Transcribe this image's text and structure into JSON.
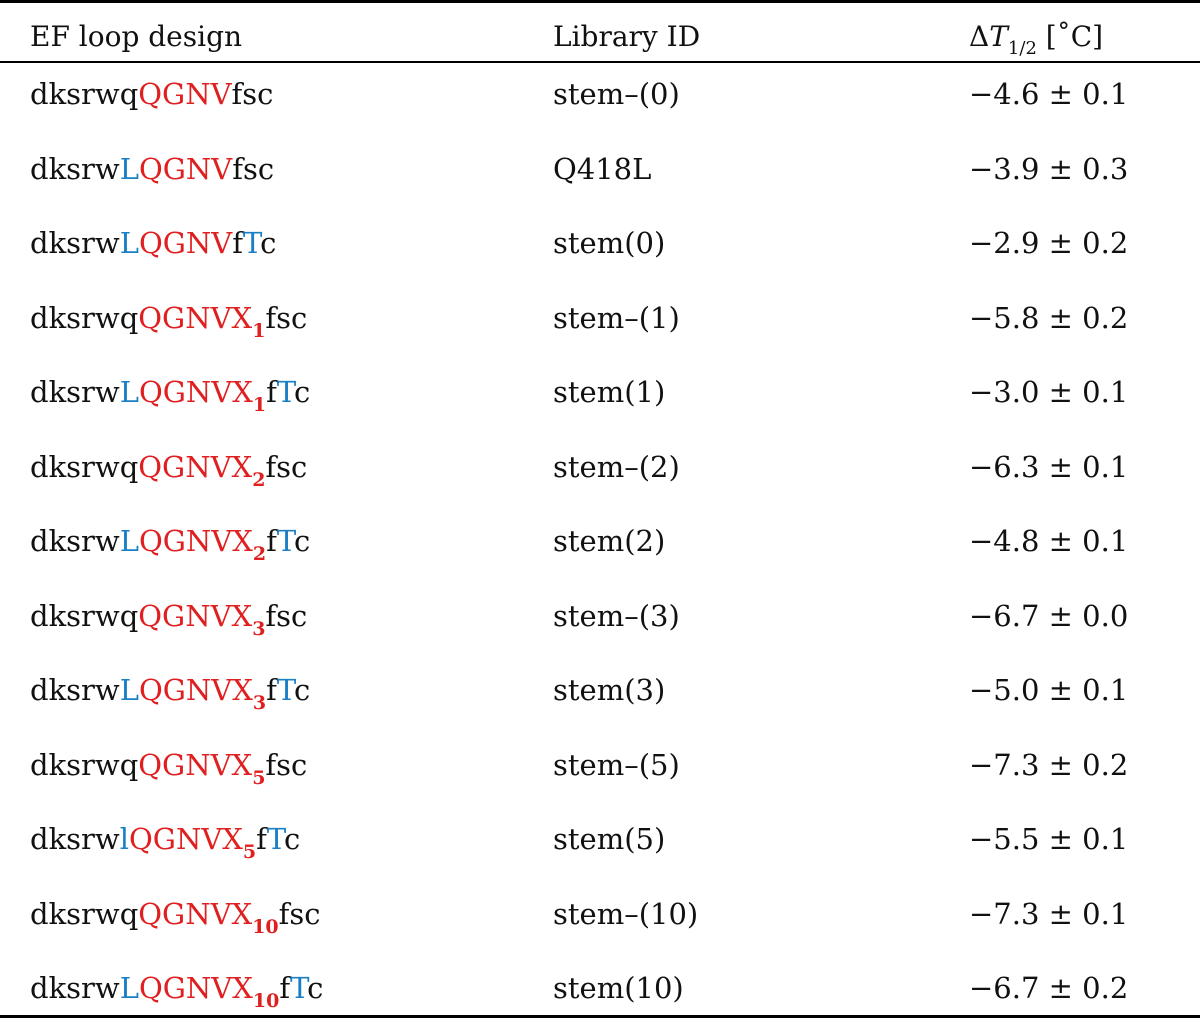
{
  "header": {
    "col1": "EF loop design",
    "col2": "Library ID",
    "col3_delta": "Δ",
    "col3_T": "T",
    "col3_sub": "1/2",
    "col3_unit": " [˚C]"
  },
  "colors": {
    "red": "#e02020",
    "blue": "#1a7fc4"
  },
  "rows": [
    {
      "design": [
        [
          "k",
          "dksrwq"
        ],
        [
          "r",
          "QGNV"
        ],
        [
          "k",
          "fsc"
        ]
      ],
      "library_id": "stem–(0)",
      "delta": "−4.6 ± 0.1"
    },
    {
      "design": [
        [
          "k",
          "dksrw"
        ],
        [
          "b",
          "L"
        ],
        [
          "r",
          "QGNV"
        ],
        [
          "k",
          "fsc"
        ]
      ],
      "library_id": "Q418L",
      "delta": "−3.9 ± 0.3"
    },
    {
      "design": [
        [
          "k",
          "dksrw"
        ],
        [
          "b",
          "L"
        ],
        [
          "r",
          "QGNV"
        ],
        [
          "k",
          "f"
        ],
        [
          "b",
          "T"
        ],
        [
          "k",
          "c"
        ]
      ],
      "library_id": "stem(0)",
      "delta": "−2.9 ± 0.2"
    },
    {
      "design": [
        [
          "k",
          "dksrwq"
        ],
        [
          "r",
          "QGNVX"
        ],
        [
          "rs",
          "1"
        ],
        [
          "k",
          "fsc"
        ]
      ],
      "library_id": "stem–(1)",
      "delta": "−5.8 ± 0.2"
    },
    {
      "design": [
        [
          "k",
          "dksrw"
        ],
        [
          "b",
          "L"
        ],
        [
          "r",
          "QGNVX"
        ],
        [
          "rs",
          "1"
        ],
        [
          "k",
          "f"
        ],
        [
          "b",
          "T"
        ],
        [
          "k",
          "c"
        ]
      ],
      "library_id": "stem(1)",
      "delta": "−3.0 ± 0.1"
    },
    {
      "design": [
        [
          "k",
          "dksrwq"
        ],
        [
          "r",
          "QGNVX"
        ],
        [
          "rs",
          "2"
        ],
        [
          "k",
          "fsc"
        ]
      ],
      "library_id": "stem–(2)",
      "delta": "−6.3 ± 0.1"
    },
    {
      "design": [
        [
          "k",
          "dksrw"
        ],
        [
          "b",
          "L"
        ],
        [
          "r",
          "QGNVX"
        ],
        [
          "rs",
          "2"
        ],
        [
          "k",
          "f"
        ],
        [
          "b",
          "T"
        ],
        [
          "k",
          "c"
        ]
      ],
      "library_id": "stem(2)",
      "delta": "−4.8 ± 0.1"
    },
    {
      "design": [
        [
          "k",
          "dksrwq"
        ],
        [
          "r",
          "QGNVX"
        ],
        [
          "rs",
          "3"
        ],
        [
          "k",
          "fsc"
        ]
      ],
      "library_id": "stem–(3)",
      "delta": "−6.7 ± 0.0"
    },
    {
      "design": [
        [
          "k",
          "dksrw"
        ],
        [
          "b",
          "L"
        ],
        [
          "r",
          "QGNVX"
        ],
        [
          "rs",
          "3"
        ],
        [
          "k",
          "f"
        ],
        [
          "b",
          "T"
        ],
        [
          "k",
          "c"
        ]
      ],
      "library_id": "stem(3)",
      "delta": "−5.0 ± 0.1"
    },
    {
      "design": [
        [
          "k",
          "dksrwq"
        ],
        [
          "r",
          "QGNVX"
        ],
        [
          "rs",
          "5"
        ],
        [
          "k",
          "fsc"
        ]
      ],
      "library_id": "stem–(5)",
      "delta": "−7.3 ± 0.2"
    },
    {
      "design": [
        [
          "k",
          "dksrw"
        ],
        [
          "b",
          "l"
        ],
        [
          "r",
          "QGNVX"
        ],
        [
          "rs",
          "5"
        ],
        [
          "k",
          "f"
        ],
        [
          "b",
          "T"
        ],
        [
          "k",
          "c"
        ]
      ],
      "library_id": "stem(5)",
      "delta": "−5.5 ± 0.1"
    },
    {
      "design": [
        [
          "k",
          "dksrwq"
        ],
        [
          "r",
          "QGNVX"
        ],
        [
          "rs",
          "10"
        ],
        [
          "k",
          "fsc"
        ]
      ],
      "library_id": "stem–(10)",
      "delta": "−7.3 ± 0.1"
    },
    {
      "design": [
        [
          "k",
          "dksrw"
        ],
        [
          "b",
          "L"
        ],
        [
          "r",
          "QGNVX"
        ],
        [
          "rs",
          "10"
        ],
        [
          "k",
          "f"
        ],
        [
          "b",
          "T"
        ],
        [
          "k",
          "c"
        ]
      ],
      "library_id": "stem(10)",
      "delta": "−6.7 ± 0.2"
    }
  ]
}
